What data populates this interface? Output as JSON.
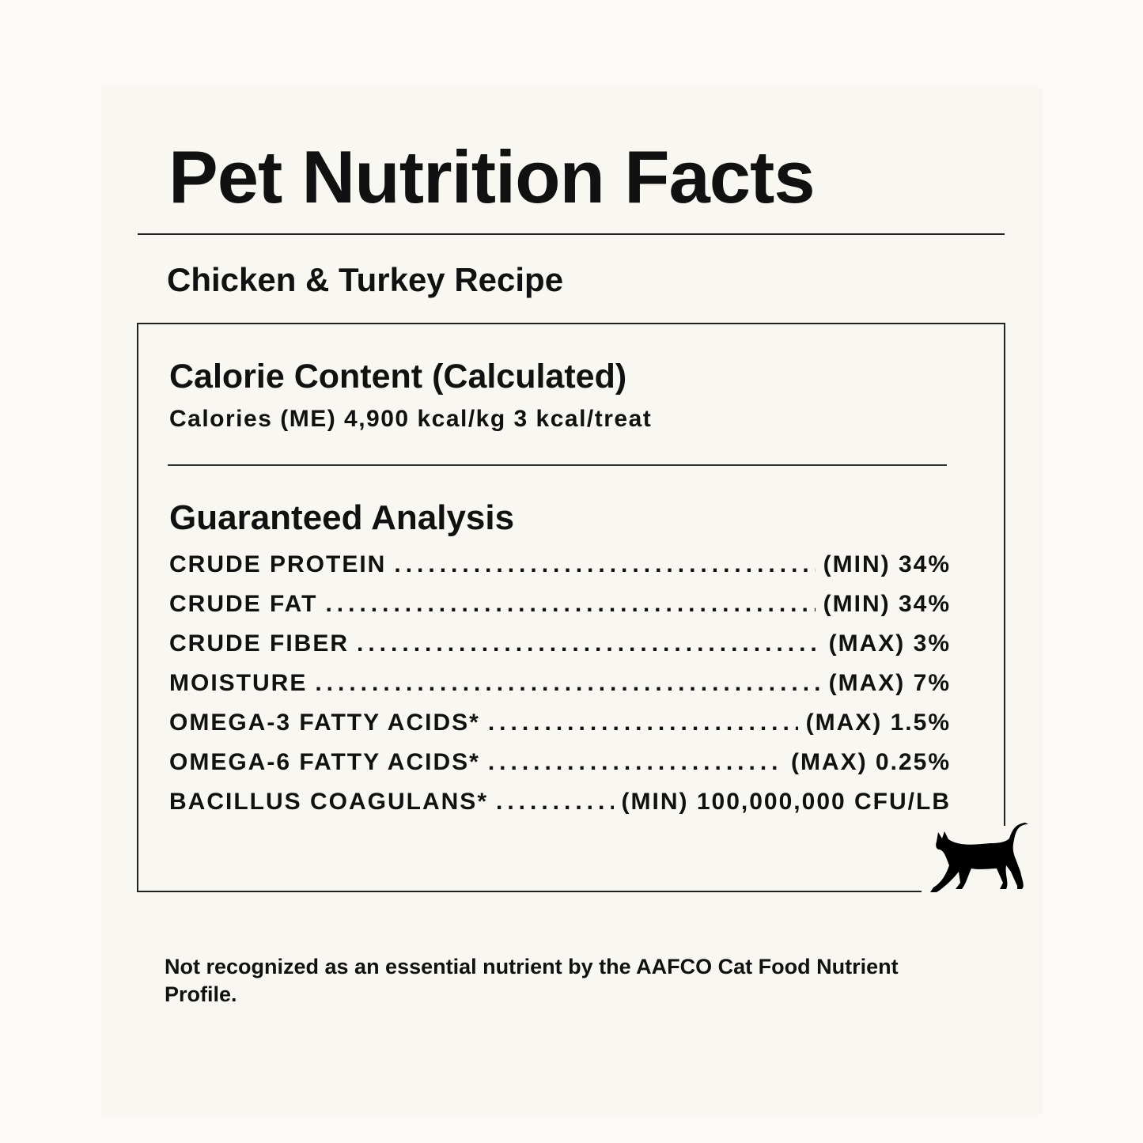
{
  "title": "Pet Nutrition Facts",
  "recipe": "Chicken & Turkey Recipe",
  "calorie": {
    "heading": "Calorie Content (Calculated)",
    "text": "Calories (ME) 4,900 kcal/kg 3 kcal/treat"
  },
  "analysis": {
    "heading": "Guaranteed Analysis",
    "rows": [
      {
        "label": "CRUDE PROTEIN",
        "value": "(MIN) 34%"
      },
      {
        "label": "CRUDE FAT",
        "value": "(MIN) 34%"
      },
      {
        "label": "CRUDE FIBER",
        "value": "(MAX) 3%"
      },
      {
        "label": "MOISTURE",
        "value": "(MAX) 7%"
      },
      {
        "label": "OMEGA-3 FATTY ACIDS*",
        "value": "(MAX) 1.5%"
      },
      {
        "label": "OMEGA-6 FATTY ACIDS*",
        "value": "(MAX) 0.25%"
      },
      {
        "label": "BACILLUS COAGULANS*",
        "value": "(MIN) 100,000,000 CFU/LB"
      }
    ]
  },
  "footnote": "Not recognized as an essential nutrient by the AAFCO Cat Food Nutrient Profile.",
  "icon": "walking-cat-icon",
  "colors": {
    "text": "#111111",
    "background": "#f9f7f1"
  }
}
